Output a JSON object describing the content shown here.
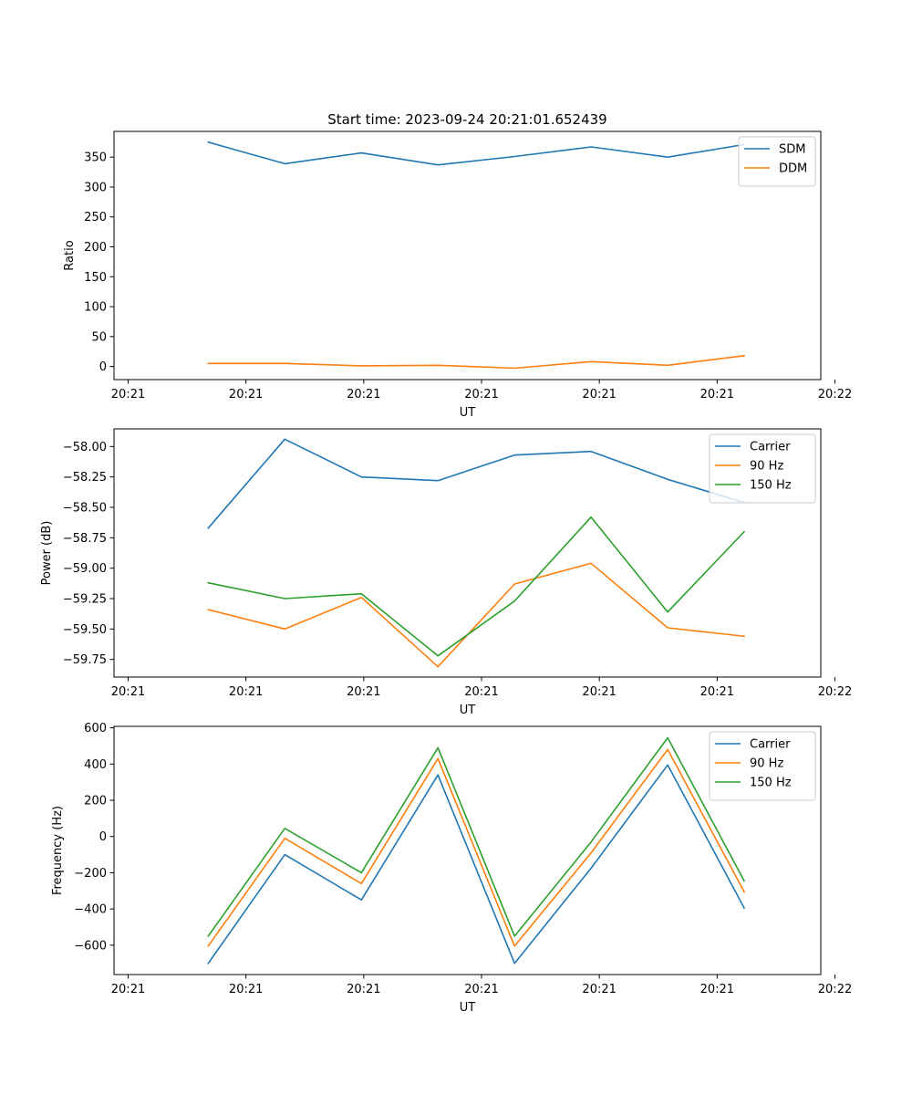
{
  "figure_title": "Start time: 2023-09-24 20:21:01.652439",
  "chart_data": [
    {
      "type": "line",
      "title": "Start time: 2023-09-24 20:21:01.652439",
      "xlabel": "UT",
      "ylabel": "Ratio",
      "x": [
        1.1,
        1.75,
        2.4,
        3.05,
        3.7,
        4.35,
        5.0,
        5.65
      ],
      "xlim": [
        0.3,
        6.3
      ],
      "xticks": [
        0.42,
        1.42,
        2.42,
        3.42,
        4.42,
        5.42,
        6.42
      ],
      "xtick_labels": [
        "20:21",
        "20:21",
        "20:21",
        "20:21",
        "20:21",
        "20:21",
        "20:22"
      ],
      "ylim": [
        -22,
        393
      ],
      "yticks": [
        0,
        50,
        100,
        150,
        200,
        250,
        300,
        350
      ],
      "ytick_labels": [
        "0",
        "50",
        "100",
        "150",
        "200",
        "250",
        "300",
        "350"
      ],
      "legend": "top-right",
      "grid": false,
      "series": [
        {
          "name": "SDM",
          "color": "#1f77b4",
          "values": [
            375,
            339,
            357,
            337,
            351,
            367,
            350,
            371
          ]
        },
        {
          "name": "DDM",
          "color": "#ff7f0e",
          "values": [
            5,
            5,
            1,
            2,
            -3,
            8,
            2,
            18
          ]
        }
      ]
    },
    {
      "type": "line",
      "title": "",
      "xlabel": "UT",
      "ylabel": "Power (dB)",
      "x": [
        1.1,
        1.75,
        2.4,
        3.05,
        3.7,
        4.35,
        5.0,
        5.65
      ],
      "xlim": [
        0.3,
        6.3
      ],
      "xticks": [
        0.42,
        1.42,
        2.42,
        3.42,
        4.42,
        5.42,
        6.42
      ],
      "xtick_labels": [
        "20:21",
        "20:21",
        "20:21",
        "20:21",
        "20:21",
        "20:21",
        "20:22"
      ],
      "ylim": [
        -59.895,
        -57.855
      ],
      "yticks": [
        -59.75,
        -59.5,
        -59.25,
        -59.0,
        -58.75,
        -58.5,
        -58.25,
        -58.0
      ],
      "ytick_labels": [
        "−59.75",
        "−59.50",
        "−59.25",
        "−59.00",
        "−58.75",
        "−58.50",
        "−58.25",
        "−58.00"
      ],
      "legend": "top-right",
      "grid": false,
      "series": [
        {
          "name": "Carrier",
          "color": "#1f77b4",
          "values": [
            -58.67,
            -57.94,
            -58.25,
            -58.28,
            -58.07,
            -58.04,
            -58.27,
            -58.46
          ]
        },
        {
          "name": "90 Hz",
          "color": "#ff7f0e",
          "values": [
            -59.34,
            -59.5,
            -59.24,
            -59.81,
            -59.13,
            -58.96,
            -59.49,
            -59.56
          ]
        },
        {
          "name": "150 Hz",
          "color": "#2ca02c",
          "values": [
            -59.12,
            -59.25,
            -59.21,
            -59.72,
            -59.27,
            -58.58,
            -59.36,
            -58.7
          ]
        }
      ]
    },
    {
      "type": "line",
      "title": "",
      "xlabel": "UT",
      "ylabel": "Frequency (Hz)",
      "x": [
        1.1,
        1.75,
        2.4,
        3.05,
        3.7,
        4.35,
        5.0,
        5.65
      ],
      "xlim": [
        0.3,
        6.3
      ],
      "xticks": [
        0.42,
        1.42,
        2.42,
        3.42,
        4.42,
        5.42,
        6.42
      ],
      "xtick_labels": [
        "20:21",
        "20:21",
        "20:21",
        "20:21",
        "20:21",
        "20:21",
        "20:22"
      ],
      "ylim": [
        -762,
        608
      ],
      "yticks": [
        -600,
        -400,
        -200,
        0,
        200,
        400,
        600
      ],
      "ytick_labels": [
        "−600",
        "−400",
        "−200",
        "0",
        "200",
        "400",
        "600"
      ],
      "legend": "top-right",
      "grid": false,
      "series": [
        {
          "name": "Carrier",
          "color": "#1f77b4",
          "values": [
            -700,
            -100,
            -350,
            340,
            -700,
            -175,
            395,
            -395
          ]
        },
        {
          "name": "90 Hz",
          "color": "#ff7f0e",
          "values": [
            -605,
            -10,
            -260,
            430,
            -605,
            -90,
            480,
            -305
          ]
        },
        {
          "name": "150 Hz",
          "color": "#2ca02c",
          "values": [
            -550,
            45,
            -200,
            490,
            -550,
            -30,
            545,
            -245
          ]
        }
      ]
    }
  ]
}
